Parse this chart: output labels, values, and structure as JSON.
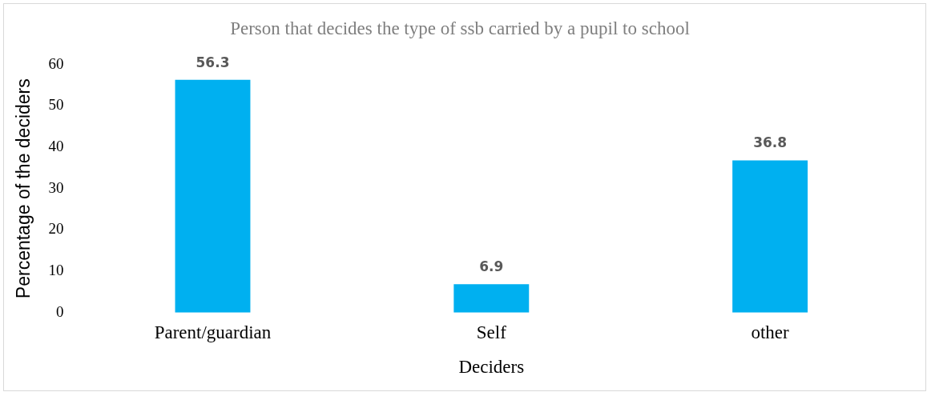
{
  "chart_data": {
    "type": "bar",
    "title": "Person that decides the type of ssb carried by a pupil to school",
    "xlabel": "Deciders",
    "ylabel": "Percentage of the deciders",
    "categories": [
      "Parent/guardian",
      "Self",
      "other"
    ],
    "values": [
      56.3,
      6.9,
      36.8
    ],
    "color": "#00b0f0",
    "ylim": [
      0,
      60
    ],
    "yticks": [
      0,
      10,
      20,
      30,
      40,
      50,
      60
    ],
    "grid": false,
    "legend": false,
    "data_labels": true
  }
}
